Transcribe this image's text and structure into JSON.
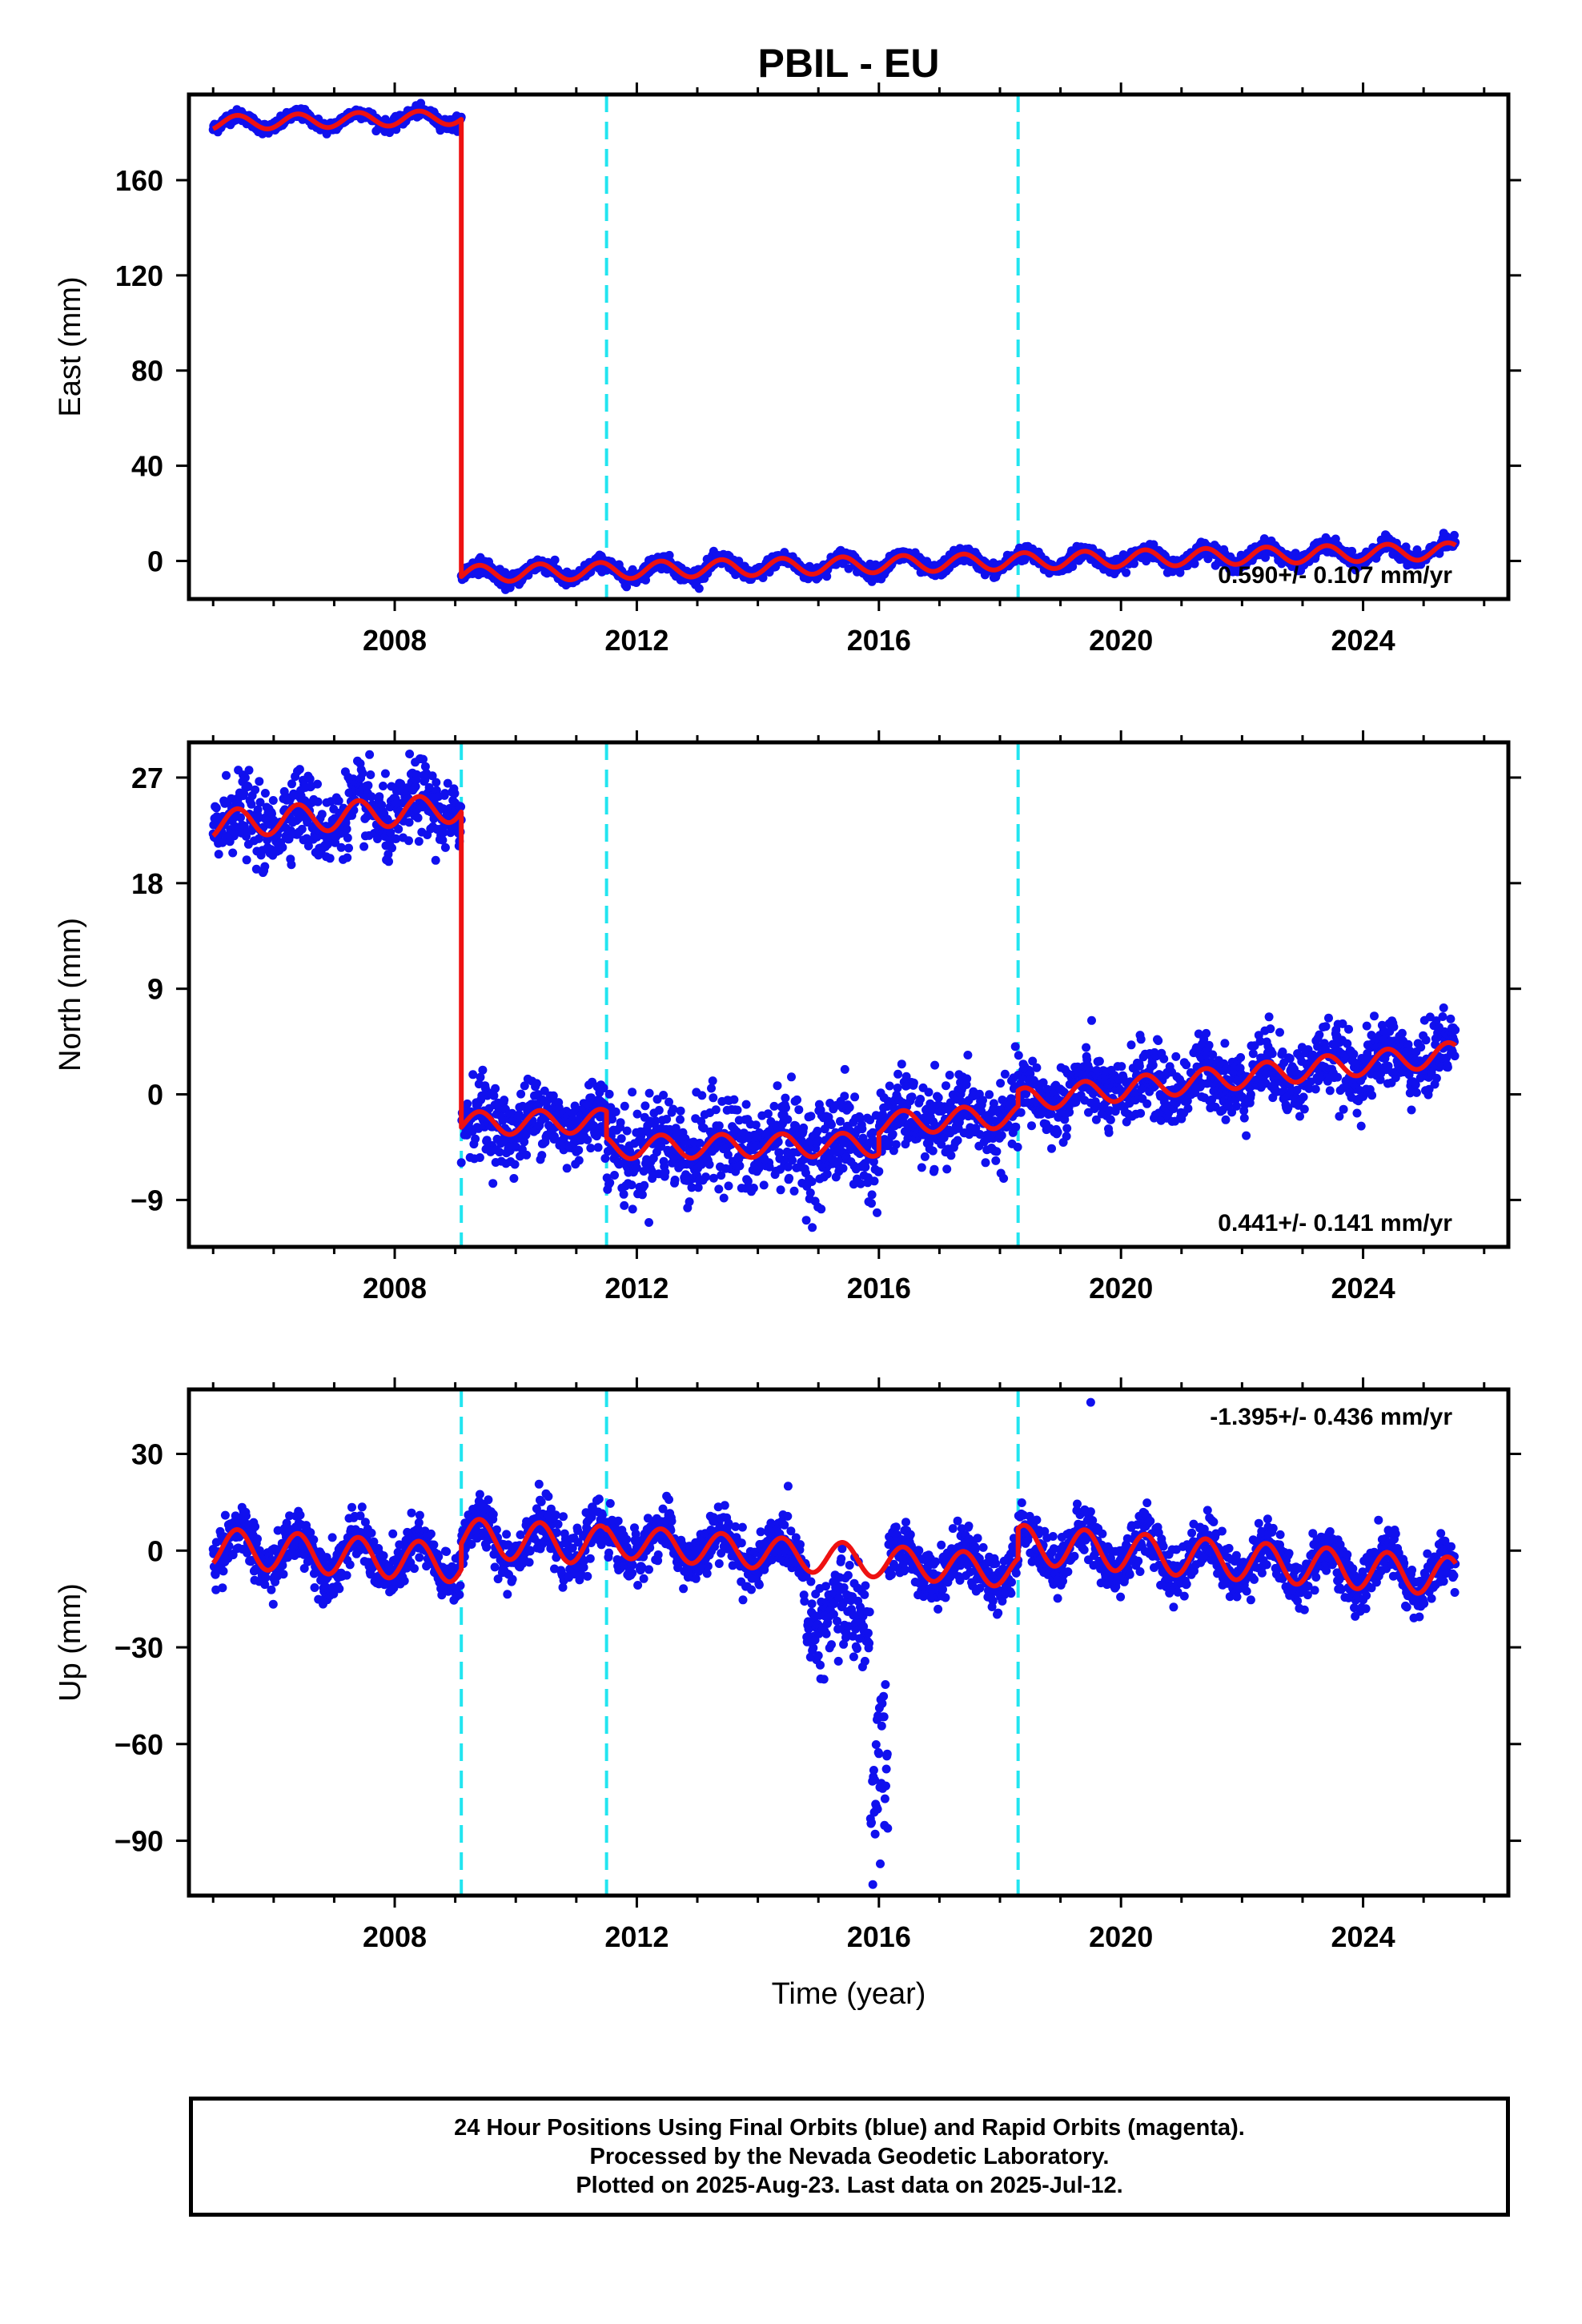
{
  "title": "PBIL - EU",
  "chart_data": [
    {
      "type": "scatter",
      "panel": "east",
      "ylabel": "East (mm)",
      "xlabel": "",
      "ylim": [
        -16,
        196
      ],
      "xlim": [
        2004.6,
        2026.4
      ],
      "yticks": [
        0,
        40,
        80,
        120,
        160
      ],
      "xticks": [
        2008,
        2012,
        2016,
        2020,
        2024
      ],
      "rate_label": "0.590+/- 0.107 mm/yr",
      "rate_position": "bottom-right",
      "grid": false,
      "break_lines": [
        2011.5,
        2018.3
      ],
      "segments": [
        {
          "start": 2005.0,
          "end": 2009.1,
          "offset": 184,
          "rate": 0.6,
          "amplitude": 3,
          "noise": 1.2
        },
        {
          "start": 2009.1,
          "end": 2025.53,
          "offset": -5.5,
          "rate": 0.59,
          "amplitude": 3.5,
          "noise": 1.5
        }
      ],
      "series": [
        {
          "name": "Final Orbits",
          "color": "#1010ee",
          "style": "points"
        },
        {
          "name": "Model fit",
          "color": "#ee1111",
          "style": "line"
        }
      ]
    },
    {
      "type": "scatter",
      "panel": "north",
      "ylabel": "North (mm)",
      "xlabel": "",
      "ylim": [
        -13,
        30
      ],
      "xlim": [
        2004.6,
        2026.4
      ],
      "yticks": [
        -9,
        0,
        9,
        18,
        27
      ],
      "xticks": [
        2008,
        2012,
        2016,
        2020,
        2024
      ],
      "rate_label": "0.441+/- 0.141 mm/yr",
      "rate_position": "bottom-right",
      "grid": false,
      "break_lines": [
        2009.1,
        2011.5,
        2018.3
      ],
      "segments": [
        {
          "start": 2005.0,
          "end": 2009.1,
          "offset": 23,
          "rate": 0.35,
          "amplitude": 1.2,
          "noise": 1.6
        },
        {
          "start": 2009.1,
          "end": 2011.5,
          "offset": -2.5,
          "rate": 0.1,
          "amplitude": 1.0,
          "noise": 1.6
        },
        {
          "start": 2011.5,
          "end": 2016.0,
          "offset": -4.5,
          "rate": 0.05,
          "amplitude": 1.0,
          "noise": 2.0
        },
        {
          "start": 2016.0,
          "end": 2018.3,
          "offset": -2.5,
          "rate": 0.3,
          "amplitude": 1.0,
          "noise": 1.6
        },
        {
          "start": 2018.3,
          "end": 2025.53,
          "offset": -0.5,
          "rate": 0.55,
          "amplitude": 1.0,
          "noise": 1.5
        }
      ],
      "series": [
        {
          "name": "Final Orbits",
          "color": "#1010ee",
          "style": "points"
        },
        {
          "name": "Model fit",
          "color": "#ee1111",
          "style": "line"
        }
      ]
    },
    {
      "type": "scatter",
      "panel": "up",
      "ylabel": "Up (mm)",
      "xlabel": "Time (year)",
      "ylim": [
        -107,
        50
      ],
      "xlim": [
        2004.6,
        2026.4
      ],
      "yticks": [
        -90,
        -60,
        -30,
        0,
        30
      ],
      "xticks": [
        2008,
        2012,
        2016,
        2020,
        2024
      ],
      "rate_label": "-1.395+/- 0.436 mm/yr",
      "rate_position": "top-right",
      "grid": false,
      "break_lines": [
        2009.1,
        2011.5,
        2018.3
      ],
      "segments": [
        {
          "start": 2005.0,
          "end": 2009.1,
          "offset": 1,
          "rate": -1.2,
          "amplitude": 6,
          "noise": 4
        },
        {
          "start": 2009.1,
          "end": 2011.5,
          "offset": 4,
          "rate": -1.0,
          "amplitude": 6,
          "noise": 4
        },
        {
          "start": 2011.5,
          "end": 2018.3,
          "offset": 3,
          "rate": -1.4,
          "amplitude": 5,
          "noise": 4
        },
        {
          "start": 2018.3,
          "end": 2025.53,
          "offset": 2,
          "rate": -1.4,
          "amplitude": 6,
          "noise": 4
        }
      ],
      "anomalies": [
        {
          "start": 2014.8,
          "end": 2015.9,
          "shift": -18,
          "noise": 6
        },
        {
          "start": 2015.85,
          "end": 2016.15,
          "shift": -65,
          "noise": 14
        }
      ],
      "outliers": [
        [
          2019.5,
          46
        ]
      ],
      "series": [
        {
          "name": "Final Orbits",
          "color": "#1010ee",
          "style": "points"
        },
        {
          "name": "Model fit",
          "color": "#ee1111",
          "style": "line"
        }
      ]
    }
  ],
  "footer": {
    "line1": "24 Hour Positions Using Final Orbits (blue) and Rapid Orbits (magenta).",
    "line2": "Processed by the Nevada Geodetic Laboratory.",
    "line3": "Plotted on 2025-Aug-23. Last data on 2025-Jul-12."
  }
}
